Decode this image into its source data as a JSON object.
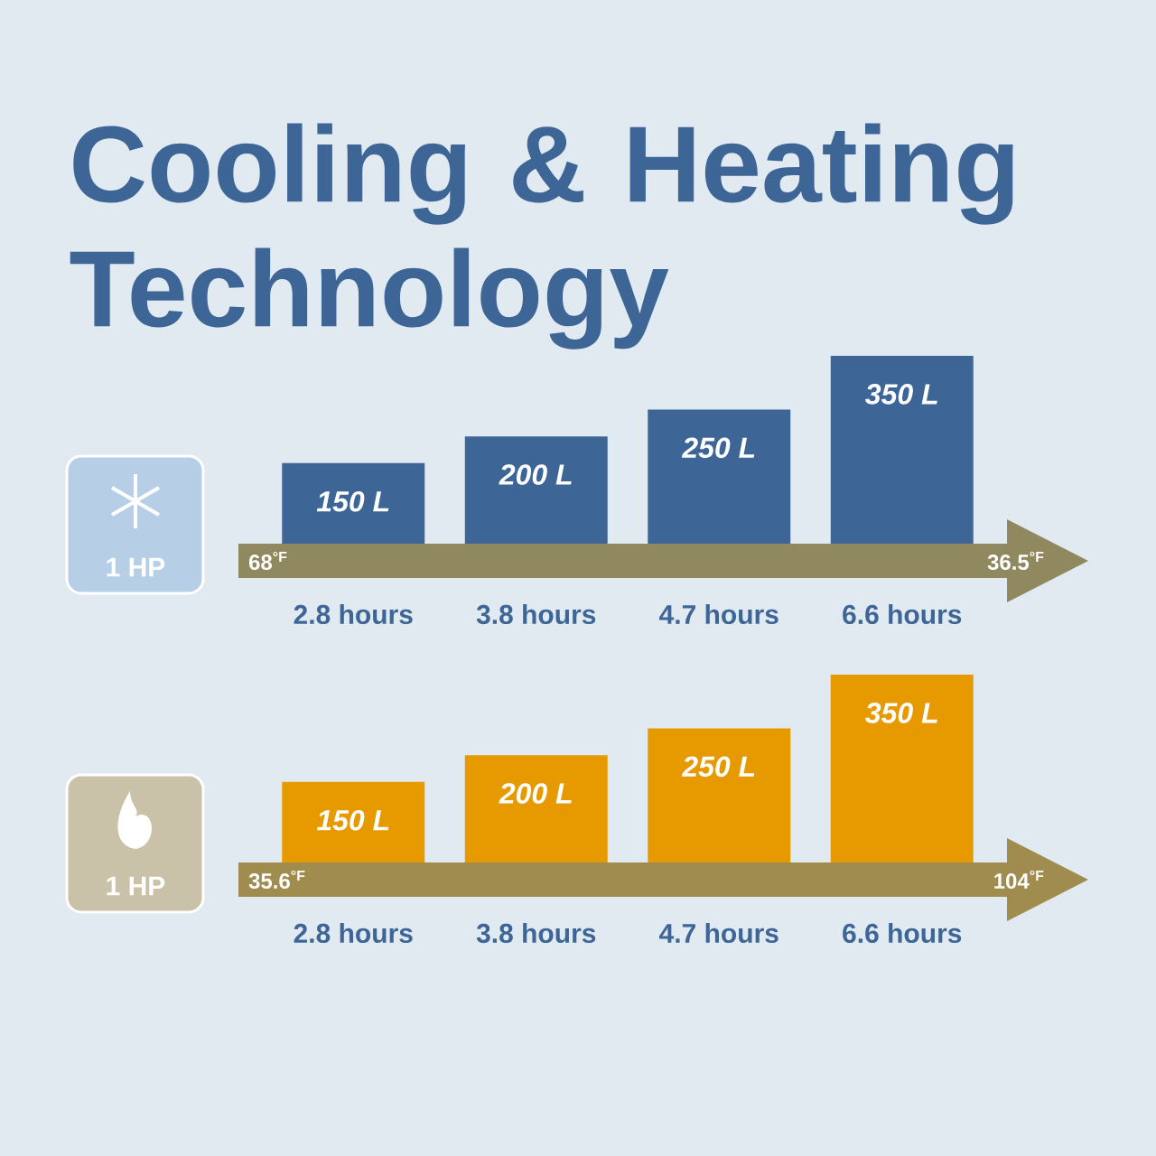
{
  "chart_data": [
    {
      "type": "bar",
      "title": "Cooling & Heating Technology",
      "categories": [
        "2.8 hours",
        "3.8 hours",
        "4.7 hours",
        "6.6 hours"
      ],
      "values": [
        150,
        200,
        250,
        350
      ],
      "value_labels": [
        "150 L",
        "200 L",
        "250 L",
        "350 L"
      ],
      "color": "#3d6697",
      "annotations": [
        "1 HP",
        "68$^{°F}$",
        "36.5$^{°F}$"
      ]
    },
    {
      "type": "bar",
      "categories": [
        "2.8 hours",
        "3.8 hours",
        "4.7 hours",
        "6.6 hours"
      ],
      "values": [
        150,
        200,
        250,
        350
      ],
      "value_labels": [
        "150 L",
        "200 L",
        "250 L",
        "350 L"
      ],
      "color": "#e69a00",
      "annotations": [
        "1 HP",
        "35.6$^{°F}$",
        "104$^{°F}$"
      ]
    }
  ]
}
